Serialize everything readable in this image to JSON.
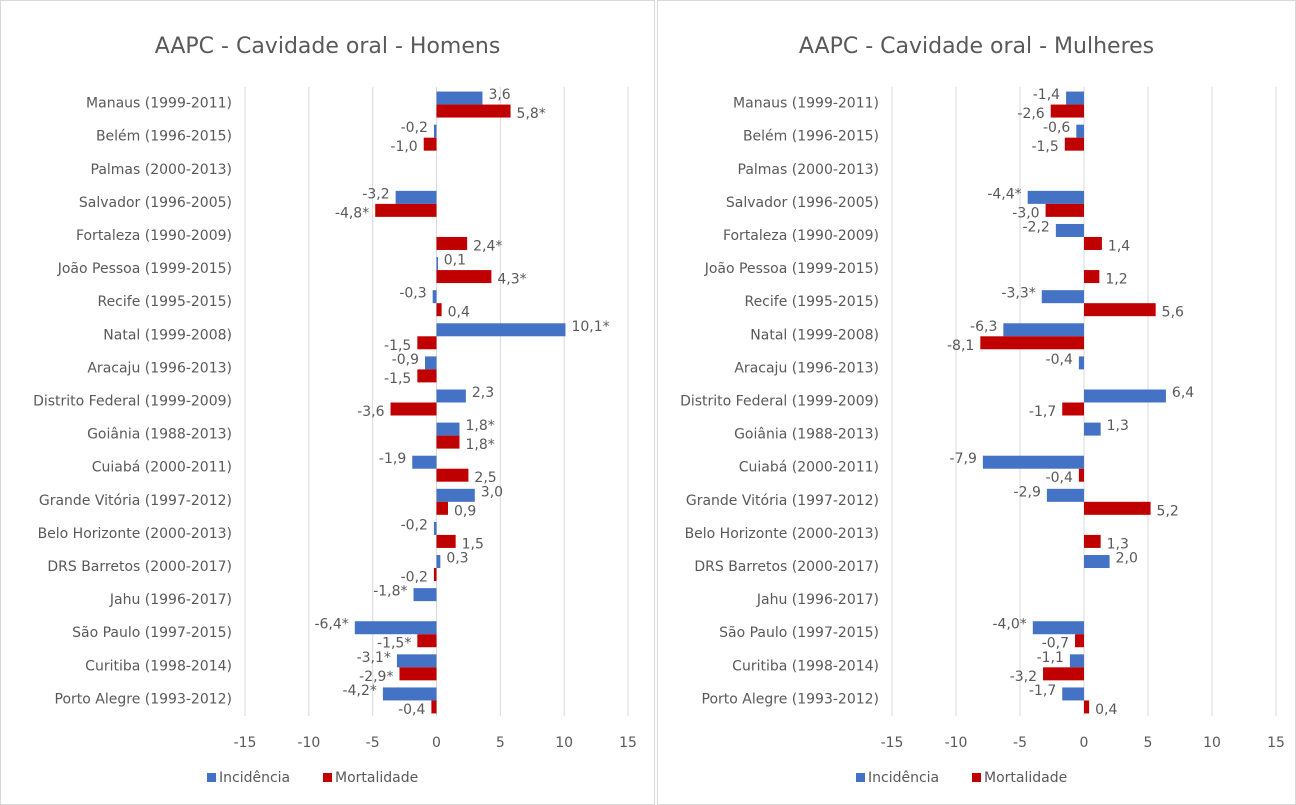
{
  "chart_data": [
    {
      "type": "bar",
      "orientation": "horizontal",
      "title": "AAPC - Cavidade oral - Homens",
      "categories": [
        "Manaus (1999-2011)",
        "Belém (1996-2015)",
        "Palmas (2000-2013)",
        "Salvador (1996-2005)",
        "Fortaleza (1990-2009)",
        "João Pessoa (1999-2015)",
        "Recife (1995-2015)",
        "Natal (1999-2008)",
        "Aracaju (1996-2013)",
        "Distrito Federal (1999-2009)",
        "Goiânia (1988-2013)",
        "Cuiabá (2000-2011)",
        "Grande Vitória (1997-2012)",
        "Belo Horizonte (2000-2013)",
        "DRS Barretos (2000-2017)",
        "Jahu (1996-2017)",
        "São Paulo (1997-2015)",
        "Curitiba (1998-2014)",
        "Porto Alegre (1993-2012)"
      ],
      "series": [
        {
          "name": "Incidência",
          "color": "#4472c4",
          "values": [
            3.6,
            -0.2,
            null,
            -3.2,
            null,
            0.1,
            -0.3,
            10.1,
            -0.9,
            2.3,
            1.8,
            -1.9,
            3.0,
            -0.2,
            0.3,
            -1.8,
            -6.4,
            -3.1,
            -4.2
          ],
          "value_labels": [
            "3,6",
            "-0,2",
            null,
            "-3,2",
            null,
            "0,1",
            "-0,3",
            "10,1*",
            "-0,9",
            "2,3",
            "1,8*",
            "-1,9",
            "3,0",
            "-0,2",
            "0,3",
            "-1,8*",
            "-6,4*",
            "-3,1*",
            "-4,2*"
          ]
        },
        {
          "name": "Mortalidade",
          "color": "#c00000",
          "values": [
            5.8,
            -1.0,
            null,
            -4.8,
            2.4,
            4.3,
            0.4,
            -1.5,
            -1.5,
            -3.6,
            1.8,
            2.5,
            0.9,
            1.5,
            -0.2,
            null,
            -1.5,
            -2.9,
            -0.4
          ],
          "value_labels": [
            "5,8*",
            "-1,0",
            null,
            "-4,8*",
            "2,4*",
            "4,3*",
            "0,4",
            "-1,5",
            "-1,5",
            "-3,6",
            "1,8*",
            "2,5",
            "0,9",
            "1,5",
            "-0,2",
            null,
            "-1,5*",
            "-2,9*",
            "-0,4"
          ]
        }
      ],
      "xlim": [
        -15,
        15
      ],
      "xticks": [
        -15,
        -10,
        -5,
        0,
        5,
        10,
        15
      ],
      "grid": true,
      "legend": "bottom"
    },
    {
      "type": "bar",
      "orientation": "horizontal",
      "title": "AAPC - Cavidade oral - Mulheres",
      "categories": [
        "Manaus (1999-2011)",
        "Belém (1996-2015)",
        "Palmas (2000-2013)",
        "Salvador (1996-2005)",
        "Fortaleza (1990-2009)",
        "João Pessoa (1999-2015)",
        "Recife (1995-2015)",
        "Natal (1999-2008)",
        "Aracaju (1996-2013)",
        "Distrito Federal (1999-2009)",
        "Goiânia (1988-2013)",
        "Cuiabá (2000-2011)",
        "Grande Vitória (1997-2012)",
        "Belo Horizonte (2000-2013)",
        "DRS Barretos (2000-2017)",
        "Jahu (1996-2017)",
        "São Paulo (1997-2015)",
        "Curitiba (1998-2014)",
        "Porto Alegre (1993-2012)"
      ],
      "series": [
        {
          "name": "Incidência",
          "color": "#4472c4",
          "values": [
            -1.4,
            -0.6,
            null,
            -4.4,
            -2.2,
            null,
            -3.3,
            -6.3,
            -0.4,
            6.4,
            1.3,
            -7.9,
            -2.9,
            null,
            2.0,
            null,
            -4.0,
            -1.1,
            -1.7
          ],
          "value_labels": [
            "-1,4",
            "-0,6",
            null,
            "-4,4*",
            "-2,2",
            null,
            "-3,3*",
            "-6,3",
            "-0,4",
            "6,4",
            "1,3",
            "-7,9",
            "-2,9",
            null,
            "2,0",
            null,
            "-4,0*",
            "-1,1",
            "-1,7"
          ]
        },
        {
          "name": "Mortalidade",
          "color": "#c00000",
          "values": [
            -2.6,
            -1.5,
            null,
            -3.0,
            1.4,
            1.2,
            5.6,
            -8.1,
            null,
            -1.7,
            null,
            -0.4,
            5.2,
            1.3,
            null,
            null,
            -0.7,
            -3.2,
            0.4
          ],
          "value_labels": [
            "-2,6",
            "-1,5",
            null,
            "-3,0",
            "1,4",
            "1,2",
            "5,6",
            "-8,1",
            null,
            "-1,7",
            null,
            "-0,4",
            "5,2",
            "1,3",
            null,
            null,
            "-0,7",
            "-3,2",
            "0,4"
          ]
        }
      ],
      "xlim": [
        -15,
        15
      ],
      "xticks": [
        -15,
        -10,
        -5,
        0,
        5,
        10,
        15
      ],
      "grid": true,
      "legend": "bottom"
    }
  ]
}
